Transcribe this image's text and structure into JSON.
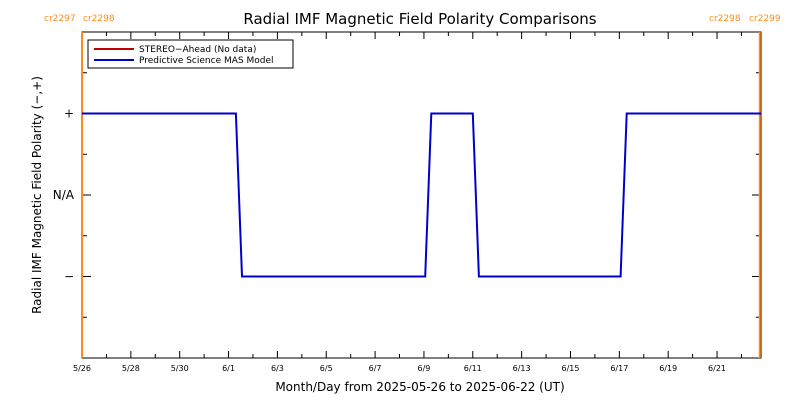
{
  "chart_data": {
    "type": "line",
    "title": "Radial IMF Magnetic Field Polarity Comparisons",
    "xlabel": "Month/Day from 2025-05-26 to 2025-06-22 (UT)",
    "ylabel": "Radial IMF Magnetic Field Polarity (−,+)",
    "x_start": "2025-05-26",
    "x_end": "2025-06-22",
    "xlim_days": [
      0,
      27.8
    ],
    "x_ticks": [
      {
        "day": 0,
        "label": "5/26"
      },
      {
        "day": 2,
        "label": "5/28"
      },
      {
        "day": 4,
        "label": "5/30"
      },
      {
        "day": 6,
        "label": "6/1"
      },
      {
        "day": 8,
        "label": "6/3"
      },
      {
        "day": 10,
        "label": "6/5"
      },
      {
        "day": 12,
        "label": "6/7"
      },
      {
        "day": 14,
        "label": "6/9"
      },
      {
        "day": 16,
        "label": "6/11"
      },
      {
        "day": 18,
        "label": "6/13"
      },
      {
        "day": 20,
        "label": "6/15"
      },
      {
        "day": 22,
        "label": "6/17"
      },
      {
        "day": 24,
        "label": "6/19"
      },
      {
        "day": 26,
        "label": "6/21"
      }
    ],
    "ylim": [
      -2,
      2
    ],
    "y_ticks": [
      {
        "value": 1,
        "label": "+"
      },
      {
        "value": 0,
        "label": "N/A"
      },
      {
        "value": -1,
        "label": "−"
      }
    ],
    "legend": {
      "placement": "top-left",
      "entries": [
        {
          "label": "STEREO−Ahead (No data)",
          "color": "#c00000"
        },
        {
          "label": "Predictive Science MAS Model",
          "color": "#0000cc"
        }
      ]
    },
    "series": [
      {
        "name": "Predictive Science MAS Model",
        "color": "#0000cc",
        "points": [
          [
            0,
            1
          ],
          [
            6.3,
            1
          ],
          [
            6.55,
            -1
          ],
          [
            14.05,
            -1
          ],
          [
            14.3,
            1
          ],
          [
            16.0,
            1
          ],
          [
            16.25,
            -1
          ],
          [
            22.05,
            -1
          ],
          [
            22.3,
            1
          ],
          [
            27.8,
            1
          ]
        ]
      }
    ],
    "carrington_markers": [
      {
        "day": 0,
        "left_label": "cr2297",
        "right_label": "cr2298",
        "color": "#ff8c1a"
      },
      {
        "day": 27.75,
        "left_label": "cr2298",
        "right_label": "cr2299",
        "color": "#ff8c1a"
      }
    ]
  }
}
